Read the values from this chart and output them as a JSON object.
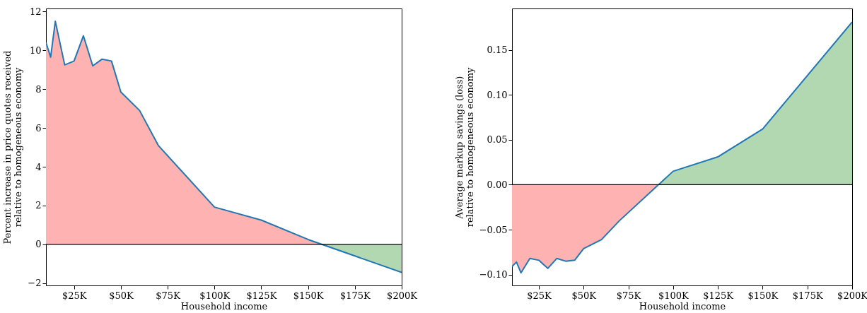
{
  "chart_data": [
    {
      "type": "area",
      "xlabel": "Household income",
      "ylabel": "Percent increase in price quotes received\nrelative to homogeneous economy",
      "x": [
        10000,
        12500,
        15000,
        20000,
        25000,
        30000,
        35000,
        40000,
        45000,
        50000,
        60000,
        70000,
        100000,
        125000,
        150000,
        200000
      ],
      "xlim": [
        10000,
        200000
      ],
      "xticks": [
        {
          "value": 25000,
          "label": "$25K"
        },
        {
          "value": 50000,
          "label": "$50K"
        },
        {
          "value": 75000,
          "label": "$75K"
        },
        {
          "value": 100000,
          "label": "$100K"
        },
        {
          "value": 125000,
          "label": "$125K"
        },
        {
          "value": 150000,
          "label": "$150K"
        },
        {
          "value": 175000,
          "label": "$175K"
        },
        {
          "value": 200000,
          "label": "$200K"
        }
      ],
      "ylim": [
        -2.12,
        12.16
      ],
      "yticks": [
        {
          "value": -2,
          "label": "−2"
        },
        0,
        2,
        4,
        6,
        8,
        10,
        12
      ],
      "series": [
        {
          "color": "#1f77b4",
          "colors": [
            "#ffb2b2",
            "#ffb2b2",
            "#ffb2b2",
            "#ffb2b2",
            "#ffb2b2",
            "#ffb2b2",
            "#ffb2b2",
            "#ffb2b2",
            "#ffb2b2",
            "#ffb2b2",
            "#ffb2b2",
            "#ffb2b2",
            "#ffb2b2",
            "#ffb2b2",
            "#ffb2b2",
            "#b2d8b2"
          ],
          "values": [
            10.4,
            9.65,
            11.5,
            9.25,
            9.45,
            10.75,
            9.2,
            9.55,
            9.45,
            7.85,
            6.9,
            5.1,
            1.92,
            1.25,
            0.25,
            -1.45
          ]
        }
      ],
      "ref_lines": [
        {
          "axis": "y",
          "value": 0,
          "color": "#000000"
        }
      ],
      "grid": false,
      "legend": false
    },
    {
      "type": "area",
      "xlabel": "Household income",
      "ylabel": "Average markup savings (loss)\nrelative to homogeneous economy",
      "x": [
        10000,
        12500,
        15000,
        20000,
        25000,
        30000,
        35000,
        40000,
        45000,
        50000,
        60000,
        70000,
        100000,
        125000,
        150000,
        200000
      ],
      "xlim": [
        10000,
        200000
      ],
      "xticks": [
        {
          "value": 25000,
          "label": "$25K"
        },
        {
          "value": 50000,
          "label": "$50K"
        },
        {
          "value": 75000,
          "label": "$75K"
        },
        {
          "value": 100000,
          "label": "$100K"
        },
        {
          "value": 125000,
          "label": "$125K"
        },
        {
          "value": 150000,
          "label": "$150K"
        },
        {
          "value": 175000,
          "label": "$175K"
        },
        {
          "value": 200000,
          "label": "$200K"
        }
      ],
      "ylim": [
        -0.112,
        0.196
      ],
      "yticks": [
        {
          "value": -0.1,
          "label": "−0.10"
        },
        {
          "value": -0.05,
          "label": "−0.05"
        },
        {
          "value": 0,
          "label": "0.00"
        },
        {
          "value": 0.05,
          "label": "0.05"
        },
        {
          "value": 0.1,
          "label": "0.10"
        },
        {
          "value": 0.15,
          "label": "0.15"
        }
      ],
      "series": [
        {
          "color": "#1f77b4",
          "colors": [
            "#ffb2b2",
            "#ffb2b2",
            "#ffb2b2",
            "#ffb2b2",
            "#ffb2b2",
            "#ffb2b2",
            "#ffb2b2",
            "#ffb2b2",
            "#ffb2b2",
            "#ffb2b2",
            "#ffb2b2",
            "#ffb2b2",
            "#b2d8b2",
            "#b2d8b2",
            "#b2d8b2",
            "#b2d8b2"
          ],
          "values": [
            -0.091,
            -0.086,
            -0.098,
            -0.082,
            -0.084,
            -0.093,
            -0.082,
            -0.085,
            -0.084,
            -0.071,
            -0.061,
            -0.04,
            0.015,
            0.031,
            0.062,
            0.181
          ]
        }
      ],
      "ref_lines": [
        {
          "axis": "y",
          "value": 0,
          "color": "#000000"
        }
      ],
      "grid": false,
      "legend": false
    }
  ]
}
